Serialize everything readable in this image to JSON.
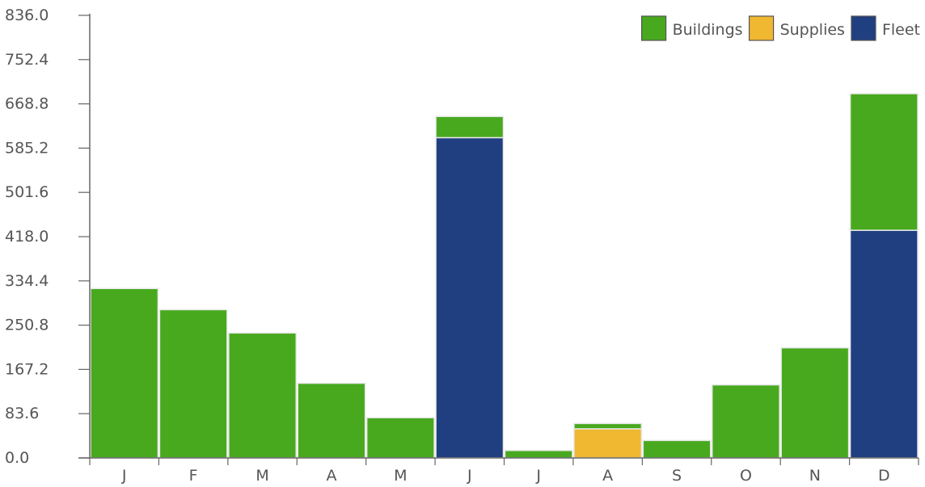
{
  "chart_data": {
    "type": "bar",
    "stacked": true,
    "categories": [
      "J",
      "F",
      "M",
      "A",
      "M",
      "J",
      "J",
      "A",
      "S",
      "O",
      "N",
      "D"
    ],
    "series": [
      {
        "name": "Fleet",
        "color": "#203f80",
        "values": [
          0,
          0,
          0,
          0,
          0,
          605,
          0,
          0,
          0,
          0,
          0,
          430
        ]
      },
      {
        "name": "Supplies",
        "color": "#f0b731",
        "values": [
          0,
          0,
          0,
          0,
          0,
          0,
          0,
          55,
          0,
          0,
          0,
          0
        ]
      },
      {
        "name": "Buildings",
        "color": "#48a91e",
        "values": [
          320,
          280,
          236,
          141,
          76,
          40,
          14,
          10,
          33,
          138,
          208,
          258
        ]
      }
    ],
    "legend": [
      {
        "name": "Buildings",
        "color": "#48a91e"
      },
      {
        "name": "Supplies",
        "color": "#f0b731"
      },
      {
        "name": "Fleet",
        "color": "#203f80"
      }
    ],
    "legend_position": "top-right",
    "ylim": [
      0,
      836.0
    ],
    "yticks": [
      "0.0",
      "83.6",
      "167.2",
      "250.8",
      "334.4",
      "418.0",
      "501.6",
      "585.2",
      "668.8",
      "752.4",
      "836.0"
    ],
    "grid": false,
    "title": "",
    "xlabel": "",
    "ylabel": ""
  }
}
